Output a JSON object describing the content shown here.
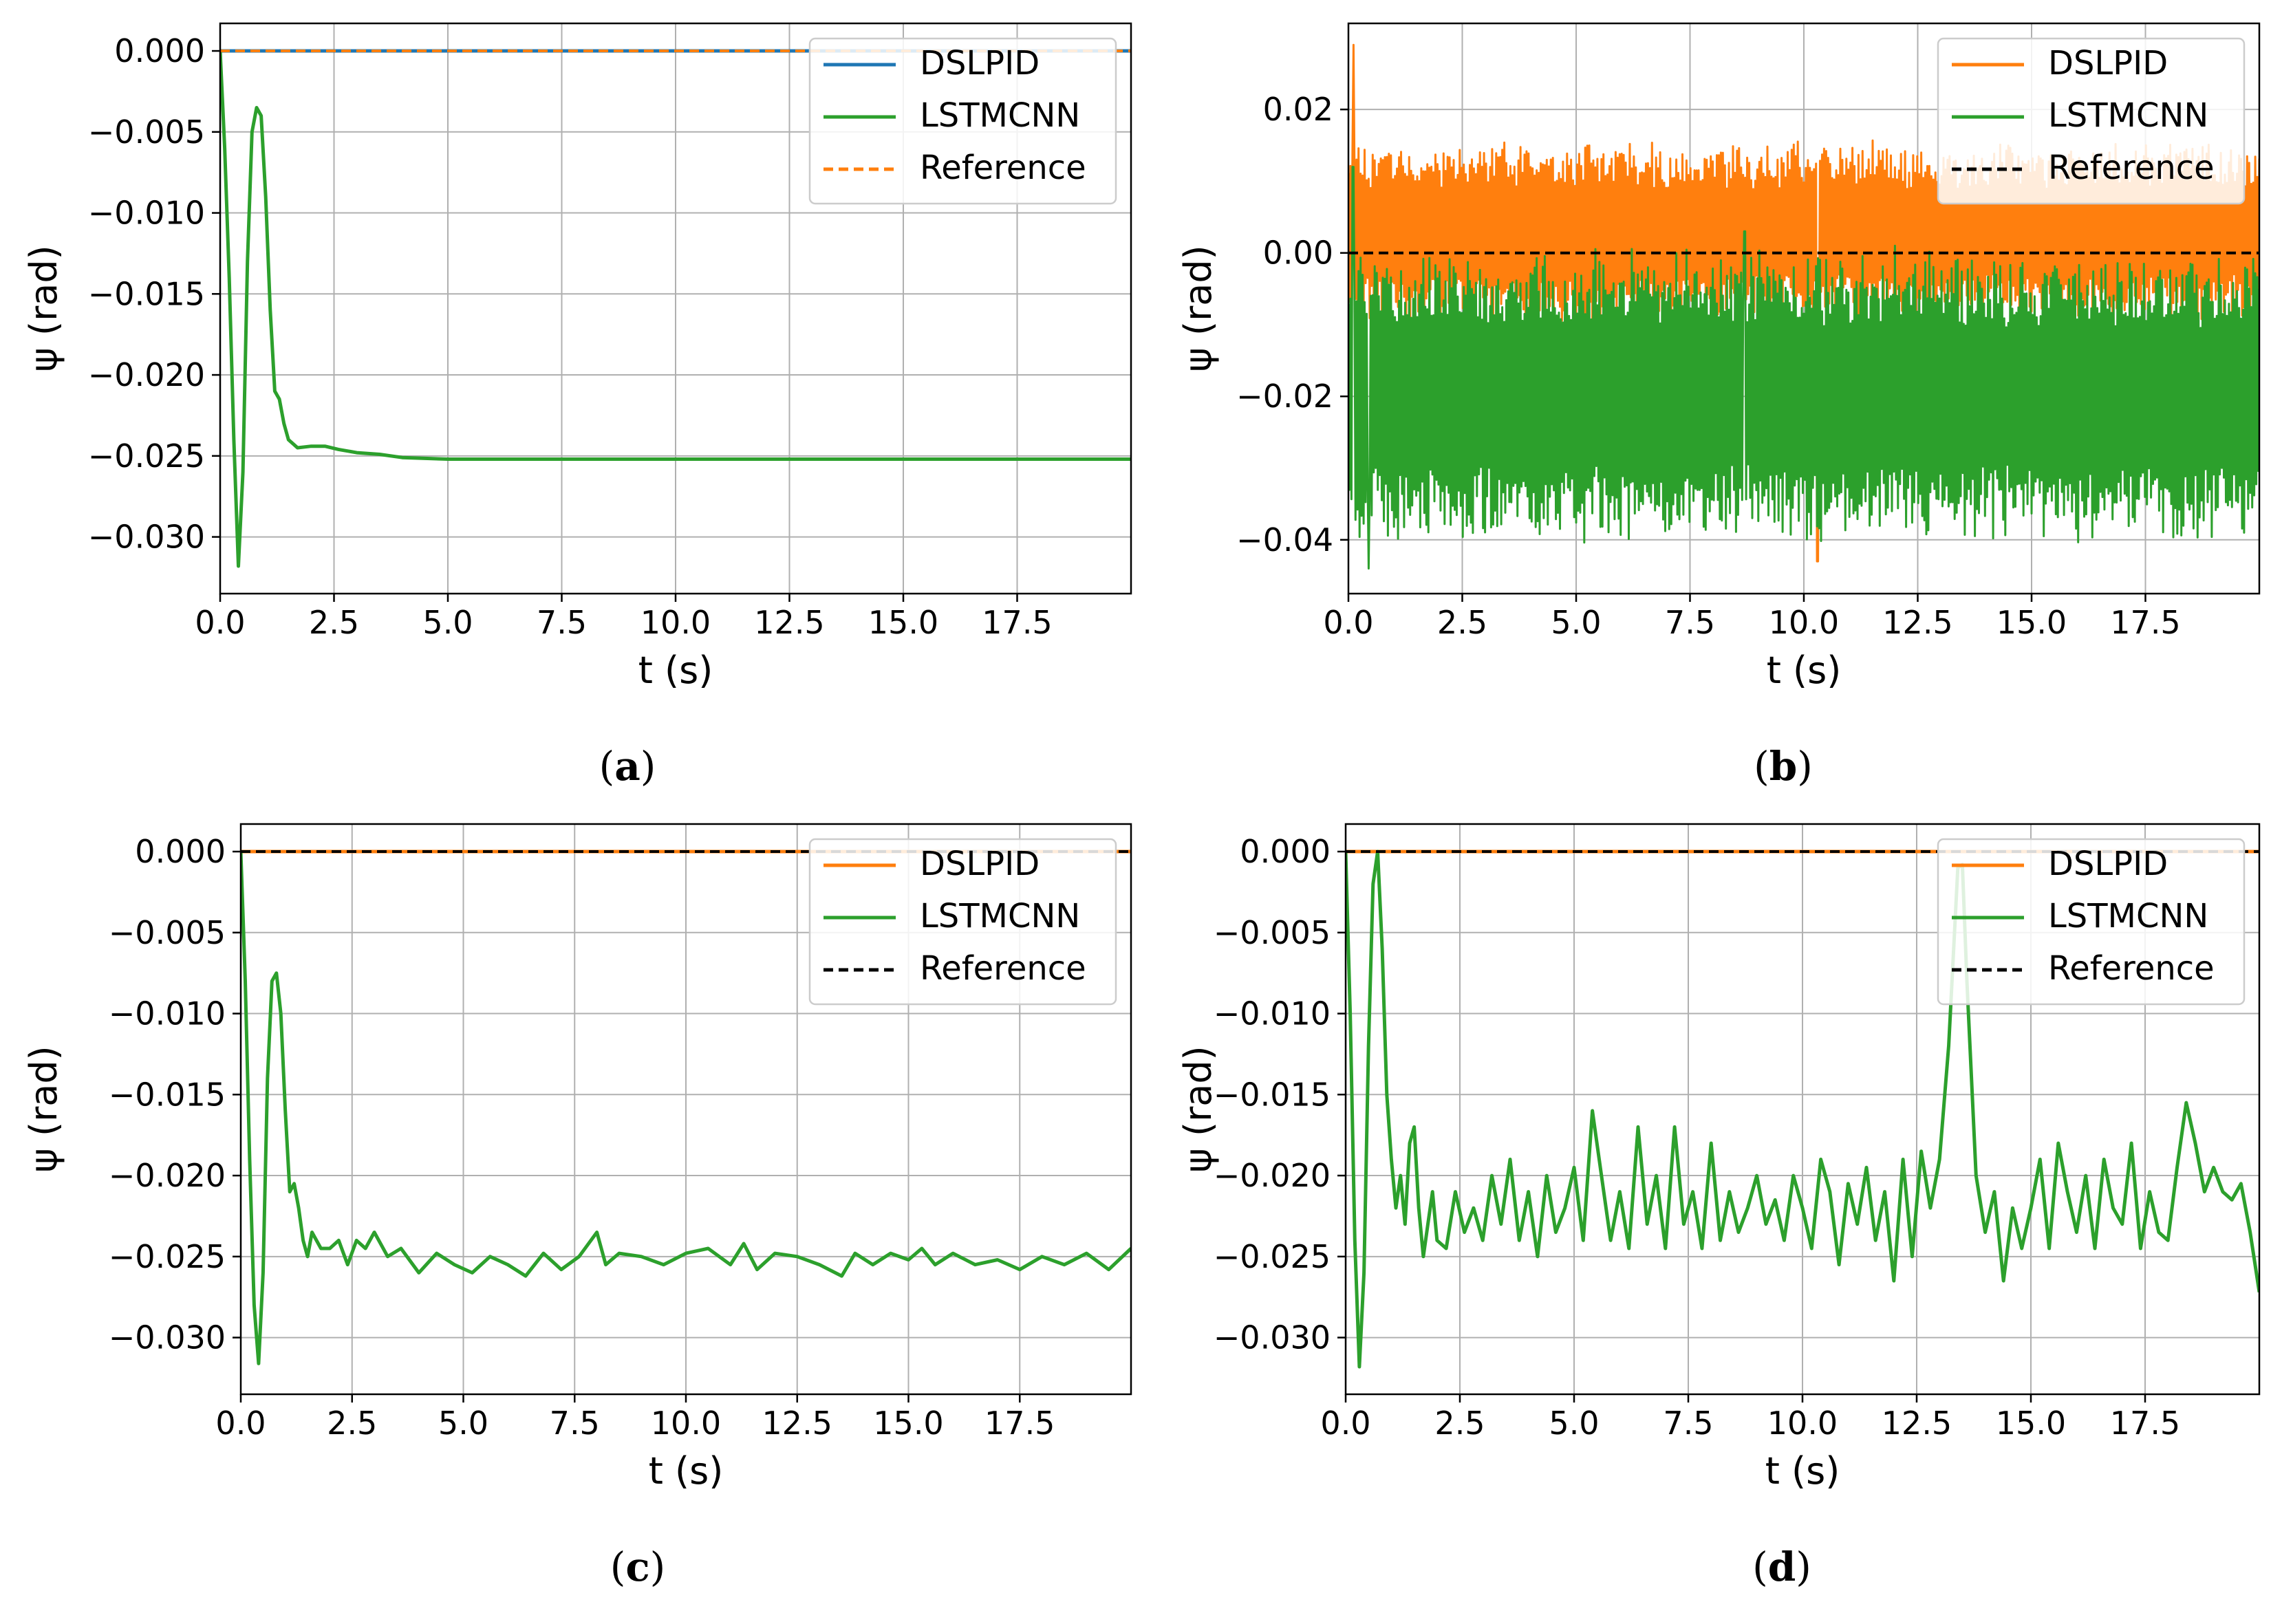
{
  "chart_data": [
    {
      "id": "a",
      "type": "line",
      "caption": "a",
      "xlabel": "t (s)",
      "ylabel": "ψ (rad)",
      "xlim": [
        0,
        20
      ],
      "ylim": [
        -0.0335,
        0.0017
      ],
      "xticks": [
        0.0,
        2.5,
        5.0,
        7.5,
        10.0,
        12.5,
        15.0,
        17.5
      ],
      "xtick_labels": [
        "0.0",
        "2.5",
        "5.0",
        "7.5",
        "10.0",
        "12.5",
        "15.0",
        "17.5"
      ],
      "yticks": [
        0.0,
        -0.005,
        -0.01,
        -0.015,
        -0.02,
        -0.025,
        -0.03
      ],
      "ytick_labels": [
        "0.000",
        "−0.005",
        "−0.010",
        "−0.015",
        "−0.020",
        "−0.025",
        "−0.030"
      ],
      "grid": true,
      "legend_position": "top-right",
      "series": [
        {
          "name": "DSLPID",
          "color": "#1f77b4",
          "style": "solid",
          "kind": "points",
          "x": [
            0,
            20
          ],
          "y": [
            0,
            0
          ]
        },
        {
          "name": "LSTMCNN",
          "color": "#2ca02c",
          "style": "solid",
          "kind": "points",
          "x": [
            0,
            0.1,
            0.2,
            0.3,
            0.4,
            0.5,
            0.6,
            0.7,
            0.8,
            0.9,
            1.0,
            1.1,
            1.2,
            1.3,
            1.4,
            1.5,
            1.7,
            2.0,
            2.3,
            2.6,
            3.0,
            3.5,
            4.0,
            5.0,
            6.0,
            8.0,
            10.0,
            12.0,
            15.0,
            20.0
          ],
          "y": [
            0,
            -0.006,
            -0.014,
            -0.024,
            -0.0318,
            -0.026,
            -0.013,
            -0.005,
            -0.0035,
            -0.004,
            -0.009,
            -0.016,
            -0.021,
            -0.0215,
            -0.023,
            -0.024,
            -0.0245,
            -0.0244,
            -0.0244,
            -0.0246,
            -0.0248,
            -0.0249,
            -0.0251,
            -0.0252,
            -0.0252,
            -0.0252,
            -0.0252,
            -0.0252,
            -0.0252,
            -0.0252
          ]
        },
        {
          "name": "Reference",
          "color": "#ff7f0e",
          "style": "dashed",
          "kind": "points",
          "x": [
            0,
            20
          ],
          "y": [
            0,
            0
          ]
        }
      ]
    },
    {
      "id": "b",
      "type": "line",
      "caption": "b",
      "xlabel": "t (s)",
      "ylabel": "ψ (rad)",
      "xlim": [
        0,
        20
      ],
      "ylim": [
        -0.0475,
        0.032
      ],
      "xticks": [
        0.0,
        2.5,
        5.0,
        7.5,
        10.0,
        12.5,
        15.0,
        17.5
      ],
      "xtick_labels": [
        "0.0",
        "2.5",
        "5.0",
        "7.5",
        "10.0",
        "12.5",
        "15.0",
        "17.5"
      ],
      "yticks": [
        0.02,
        0.0,
        -0.02,
        -0.04
      ],
      "ytick_labels": [
        "0.02",
        "0.00",
        "−0.02",
        "−0.04"
      ],
      "grid": true,
      "legend_position": "top-right",
      "series": [
        {
          "name": "DSLPID",
          "color": "#ff7f0e",
          "style": "solid",
          "kind": "noise",
          "center": 0.003,
          "amplitude": 0.013,
          "spikes": [
            [
              0.12,
              0.029
            ],
            [
              10.3,
              -0.043
            ],
            [
              2.6,
              -0.028
            ]
          ]
        },
        {
          "name": "LSTMCNN",
          "color": "#2ca02c",
          "style": "solid",
          "kind": "noise",
          "center": -0.02,
          "amplitude": 0.021,
          "spikes": [
            [
              0.45,
              -0.044
            ],
            [
              8.7,
              0.003
            ],
            [
              12.0,
              0.001
            ],
            [
              0.1,
              0.012
            ]
          ]
        },
        {
          "name": "Reference",
          "color": "#000000",
          "style": "dashed",
          "kind": "points",
          "x": [
            0,
            20
          ],
          "y": [
            0,
            0
          ]
        }
      ]
    },
    {
      "id": "c",
      "type": "line",
      "caption": "c",
      "xlabel": "t (s)",
      "ylabel": "ψ (rad)",
      "xlim": [
        0,
        20
      ],
      "ylim": [
        -0.0335,
        0.0017
      ],
      "xticks": [
        0.0,
        2.5,
        5.0,
        7.5,
        10.0,
        12.5,
        15.0,
        17.5
      ],
      "xtick_labels": [
        "0.0",
        "2.5",
        "5.0",
        "7.5",
        "10.0",
        "12.5",
        "15.0",
        "17.5"
      ],
      "yticks": [
        0.0,
        -0.005,
        -0.01,
        -0.015,
        -0.02,
        -0.025,
        -0.03
      ],
      "ytick_labels": [
        "0.000",
        "−0.005",
        "−0.010",
        "−0.015",
        "−0.020",
        "−0.025",
        "−0.030"
      ],
      "grid": true,
      "legend_position": "top-right",
      "series": [
        {
          "name": "DSLPID",
          "color": "#ff7f0e",
          "style": "solid",
          "kind": "points",
          "x": [
            0,
            20
          ],
          "y": [
            0,
            0
          ]
        },
        {
          "name": "LSTMCNN",
          "color": "#2ca02c",
          "style": "solid",
          "kind": "points",
          "x": [
            0,
            0.1,
            0.2,
            0.3,
            0.4,
            0.5,
            0.6,
            0.7,
            0.8,
            0.9,
            1.0,
            1.1,
            1.2,
            1.3,
            1.4,
            1.5,
            1.6,
            1.8,
            2.0,
            2.2,
            2.4,
            2.6,
            2.8,
            3.0,
            3.3,
            3.6,
            4.0,
            4.4,
            4.8,
            5.2,
            5.6,
            6.0,
            6.4,
            6.8,
            7.2,
            7.6,
            8.0,
            8.2,
            8.5,
            9.0,
            9.5,
            10.0,
            10.5,
            11.0,
            11.3,
            11.6,
            12.0,
            12.5,
            13.0,
            13.5,
            13.8,
            14.2,
            14.6,
            15.0,
            15.3,
            15.6,
            16.0,
            16.5,
            17.0,
            17.5,
            18.0,
            18.5,
            19.0,
            19.5,
            20.0
          ],
          "y": [
            0,
            -0.008,
            -0.019,
            -0.028,
            -0.0316,
            -0.026,
            -0.014,
            -0.008,
            -0.0075,
            -0.01,
            -0.016,
            -0.021,
            -0.0205,
            -0.022,
            -0.024,
            -0.025,
            -0.0235,
            -0.0245,
            -0.0245,
            -0.024,
            -0.0255,
            -0.024,
            -0.0245,
            -0.0235,
            -0.025,
            -0.0245,
            -0.026,
            -0.0248,
            -0.0255,
            -0.026,
            -0.025,
            -0.0255,
            -0.0262,
            -0.0248,
            -0.0258,
            -0.025,
            -0.0235,
            -0.0255,
            -0.0248,
            -0.025,
            -0.0255,
            -0.0248,
            -0.0245,
            -0.0255,
            -0.0242,
            -0.0258,
            -0.0248,
            -0.025,
            -0.0255,
            -0.0262,
            -0.0248,
            -0.0255,
            -0.0248,
            -0.0252,
            -0.0245,
            -0.0255,
            -0.0248,
            -0.0255,
            -0.0252,
            -0.0258,
            -0.025,
            -0.0255,
            -0.0248,
            -0.0258,
            -0.0245
          ]
        },
        {
          "name": "Reference",
          "color": "#000000",
          "style": "dashed",
          "kind": "points",
          "x": [
            0,
            20
          ],
          "y": [
            0,
            0
          ]
        }
      ]
    },
    {
      "id": "d",
      "type": "line",
      "caption": "d",
      "xlabel": "t (s)",
      "ylabel": "ψ (rad)",
      "xlim": [
        0,
        20
      ],
      "ylim": [
        -0.0335,
        0.0017
      ],
      "xticks": [
        0.0,
        2.5,
        5.0,
        7.5,
        10.0,
        12.5,
        15.0,
        17.5
      ],
      "xtick_labels": [
        "0.0",
        "2.5",
        "5.0",
        "7.5",
        "10.0",
        "12.5",
        "15.0",
        "17.5"
      ],
      "yticks": [
        0.0,
        -0.005,
        -0.01,
        -0.015,
        -0.02,
        -0.025,
        -0.03
      ],
      "ytick_labels": [
        "0.000",
        "−0.005",
        "−0.010",
        "−0.015",
        "−0.020",
        "−0.025",
        "−0.030"
      ],
      "grid": true,
      "legend_position": "top-right",
      "series": [
        {
          "name": "DSLPID",
          "color": "#ff7f0e",
          "style": "solid",
          "kind": "points",
          "x": [
            0,
            20
          ],
          "y": [
            0,
            0
          ]
        },
        {
          "name": "LSTMCNN",
          "color": "#2ca02c",
          "style": "solid",
          "kind": "points",
          "x": [
            0,
            0.1,
            0.2,
            0.3,
            0.4,
            0.5,
            0.6,
            0.7,
            0.8,
            0.9,
            1.0,
            1.1,
            1.2,
            1.3,
            1.4,
            1.5,
            1.6,
            1.7,
            1.8,
            1.9,
            2.0,
            2.2,
            2.4,
            2.6,
            2.8,
            3.0,
            3.2,
            3.4,
            3.6,
            3.8,
            4.0,
            4.2,
            4.4,
            4.6,
            4.8,
            5.0,
            5.2,
            5.4,
            5.6,
            5.8,
            6.0,
            6.2,
            6.4,
            6.6,
            6.8,
            7.0,
            7.2,
            7.4,
            7.6,
            7.8,
            8.0,
            8.2,
            8.4,
            8.6,
            8.8,
            9.0,
            9.2,
            9.4,
            9.6,
            9.8,
            10.0,
            10.2,
            10.4,
            10.6,
            10.8,
            11.0,
            11.2,
            11.4,
            11.6,
            11.8,
            12.0,
            12.2,
            12.4,
            12.6,
            12.8,
            13.0,
            13.2,
            13.4,
            13.5,
            13.6,
            13.8,
            14.0,
            14.2,
            14.4,
            14.6,
            14.8,
            15.0,
            15.2,
            15.4,
            15.6,
            15.8,
            16.0,
            16.2,
            16.4,
            16.6,
            16.8,
            17.0,
            17.2,
            17.4,
            17.6,
            17.8,
            18.0,
            18.2,
            18.4,
            18.6,
            18.8,
            19.0,
            19.2,
            19.4,
            19.6,
            19.8,
            20.0
          ],
          "y": [
            0,
            -0.01,
            -0.024,
            -0.0318,
            -0.026,
            -0.012,
            -0.002,
            0.0,
            -0.006,
            -0.015,
            -0.019,
            -0.022,
            -0.02,
            -0.023,
            -0.018,
            -0.017,
            -0.022,
            -0.025,
            -0.023,
            -0.021,
            -0.024,
            -0.0245,
            -0.021,
            -0.0235,
            -0.022,
            -0.024,
            -0.02,
            -0.023,
            -0.019,
            -0.024,
            -0.021,
            -0.025,
            -0.02,
            -0.0235,
            -0.022,
            -0.0195,
            -0.024,
            -0.016,
            -0.02,
            -0.024,
            -0.021,
            -0.0245,
            -0.017,
            -0.023,
            -0.02,
            -0.0245,
            -0.017,
            -0.023,
            -0.021,
            -0.0245,
            -0.018,
            -0.024,
            -0.021,
            -0.0235,
            -0.022,
            -0.02,
            -0.023,
            -0.0215,
            -0.024,
            -0.02,
            -0.022,
            -0.0245,
            -0.019,
            -0.021,
            -0.0255,
            -0.0205,
            -0.023,
            -0.0195,
            -0.024,
            -0.021,
            -0.0265,
            -0.019,
            -0.025,
            -0.0185,
            -0.022,
            -0.019,
            -0.012,
            -0.001,
            -0.0008,
            -0.008,
            -0.02,
            -0.0235,
            -0.021,
            -0.0265,
            -0.022,
            -0.0245,
            -0.022,
            -0.019,
            -0.0245,
            -0.018,
            -0.021,
            -0.0235,
            -0.02,
            -0.0245,
            -0.019,
            -0.022,
            -0.023,
            -0.018,
            -0.0245,
            -0.021,
            -0.0235,
            -0.024,
            -0.0195,
            -0.0155,
            -0.018,
            -0.021,
            -0.0195,
            -0.021,
            -0.0215,
            -0.0205,
            -0.0235,
            -0.0272
          ]
        },
        {
          "name": "Reference",
          "color": "#000000",
          "style": "dashed",
          "kind": "points",
          "x": [
            0,
            20
          ],
          "y": [
            0,
            0
          ]
        }
      ]
    }
  ]
}
